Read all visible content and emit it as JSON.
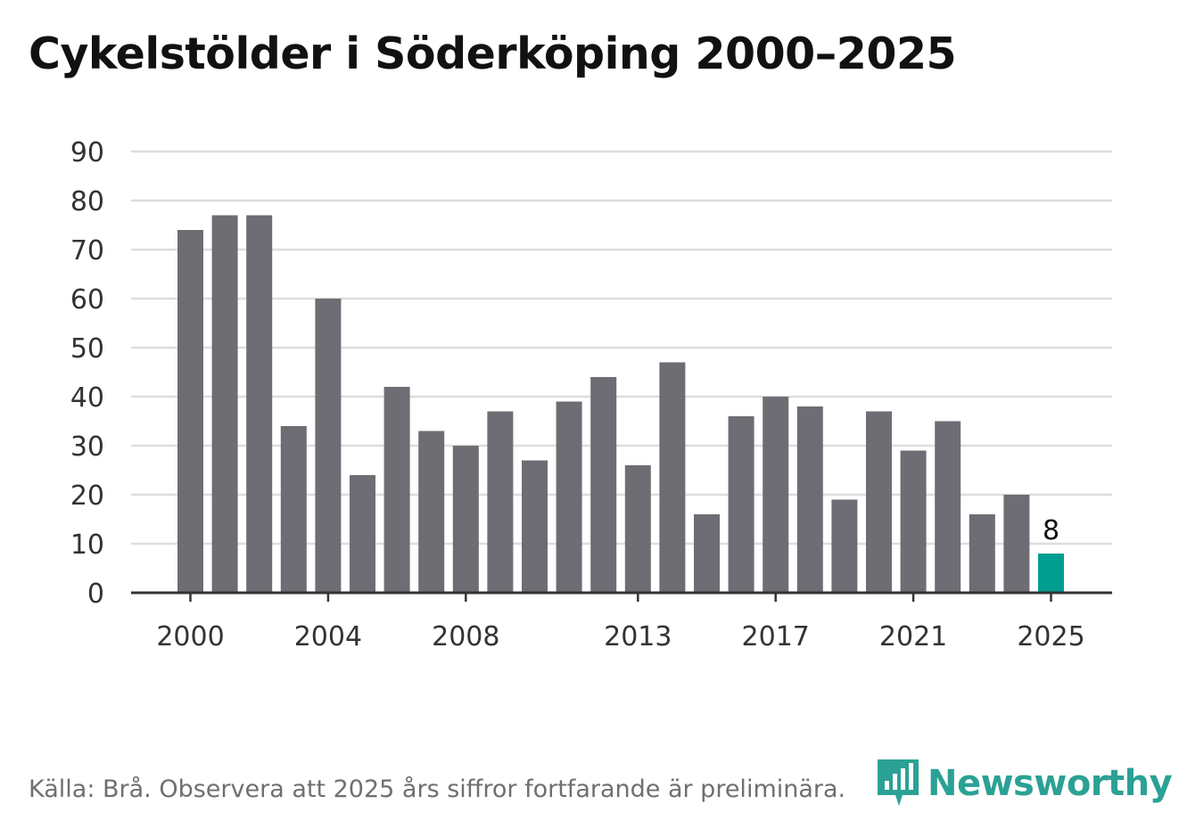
{
  "title": "Cykelstölder i Söderköping 2000–2025",
  "footer": "Källa: Brå. Observera att 2025 års siffror fortfarande är preliminära.",
  "logo_text": "Newsworthy",
  "colors": {
    "bar": "#6d6d73",
    "highlight": "#009e90",
    "grid": "#dddddd",
    "axis": "#333333",
    "text": "#333333"
  },
  "chart_data": {
    "type": "bar",
    "title": "Cykelstölder i Söderköping 2000–2025",
    "xlabel": "",
    "ylabel": "",
    "ylim": [
      0,
      90
    ],
    "yticks": [
      0,
      10,
      20,
      30,
      40,
      50,
      60,
      70,
      80,
      90
    ],
    "xtick_labels": [
      "2000",
      "2004",
      "2008",
      "2013",
      "2017",
      "2021",
      "2025"
    ],
    "grid": true,
    "highlight_category": "2025",
    "categories": [
      "2000",
      "2001",
      "2002",
      "2003",
      "2004",
      "2005",
      "2006",
      "2007",
      "2008",
      "2009",
      "2010",
      "2011",
      "2012",
      "2013",
      "2014",
      "2015",
      "2016",
      "2017",
      "2018",
      "2019",
      "2020",
      "2021",
      "2022",
      "2023",
      "2024",
      "2025"
    ],
    "values": [
      74,
      77,
      77,
      34,
      60,
      24,
      42,
      33,
      30,
      37,
      27,
      39,
      44,
      26,
      47,
      16,
      36,
      40,
      38,
      19,
      37,
      29,
      35,
      16,
      20,
      8
    ],
    "data_labels": [
      {
        "category": "2025",
        "text": "8"
      }
    ]
  }
}
